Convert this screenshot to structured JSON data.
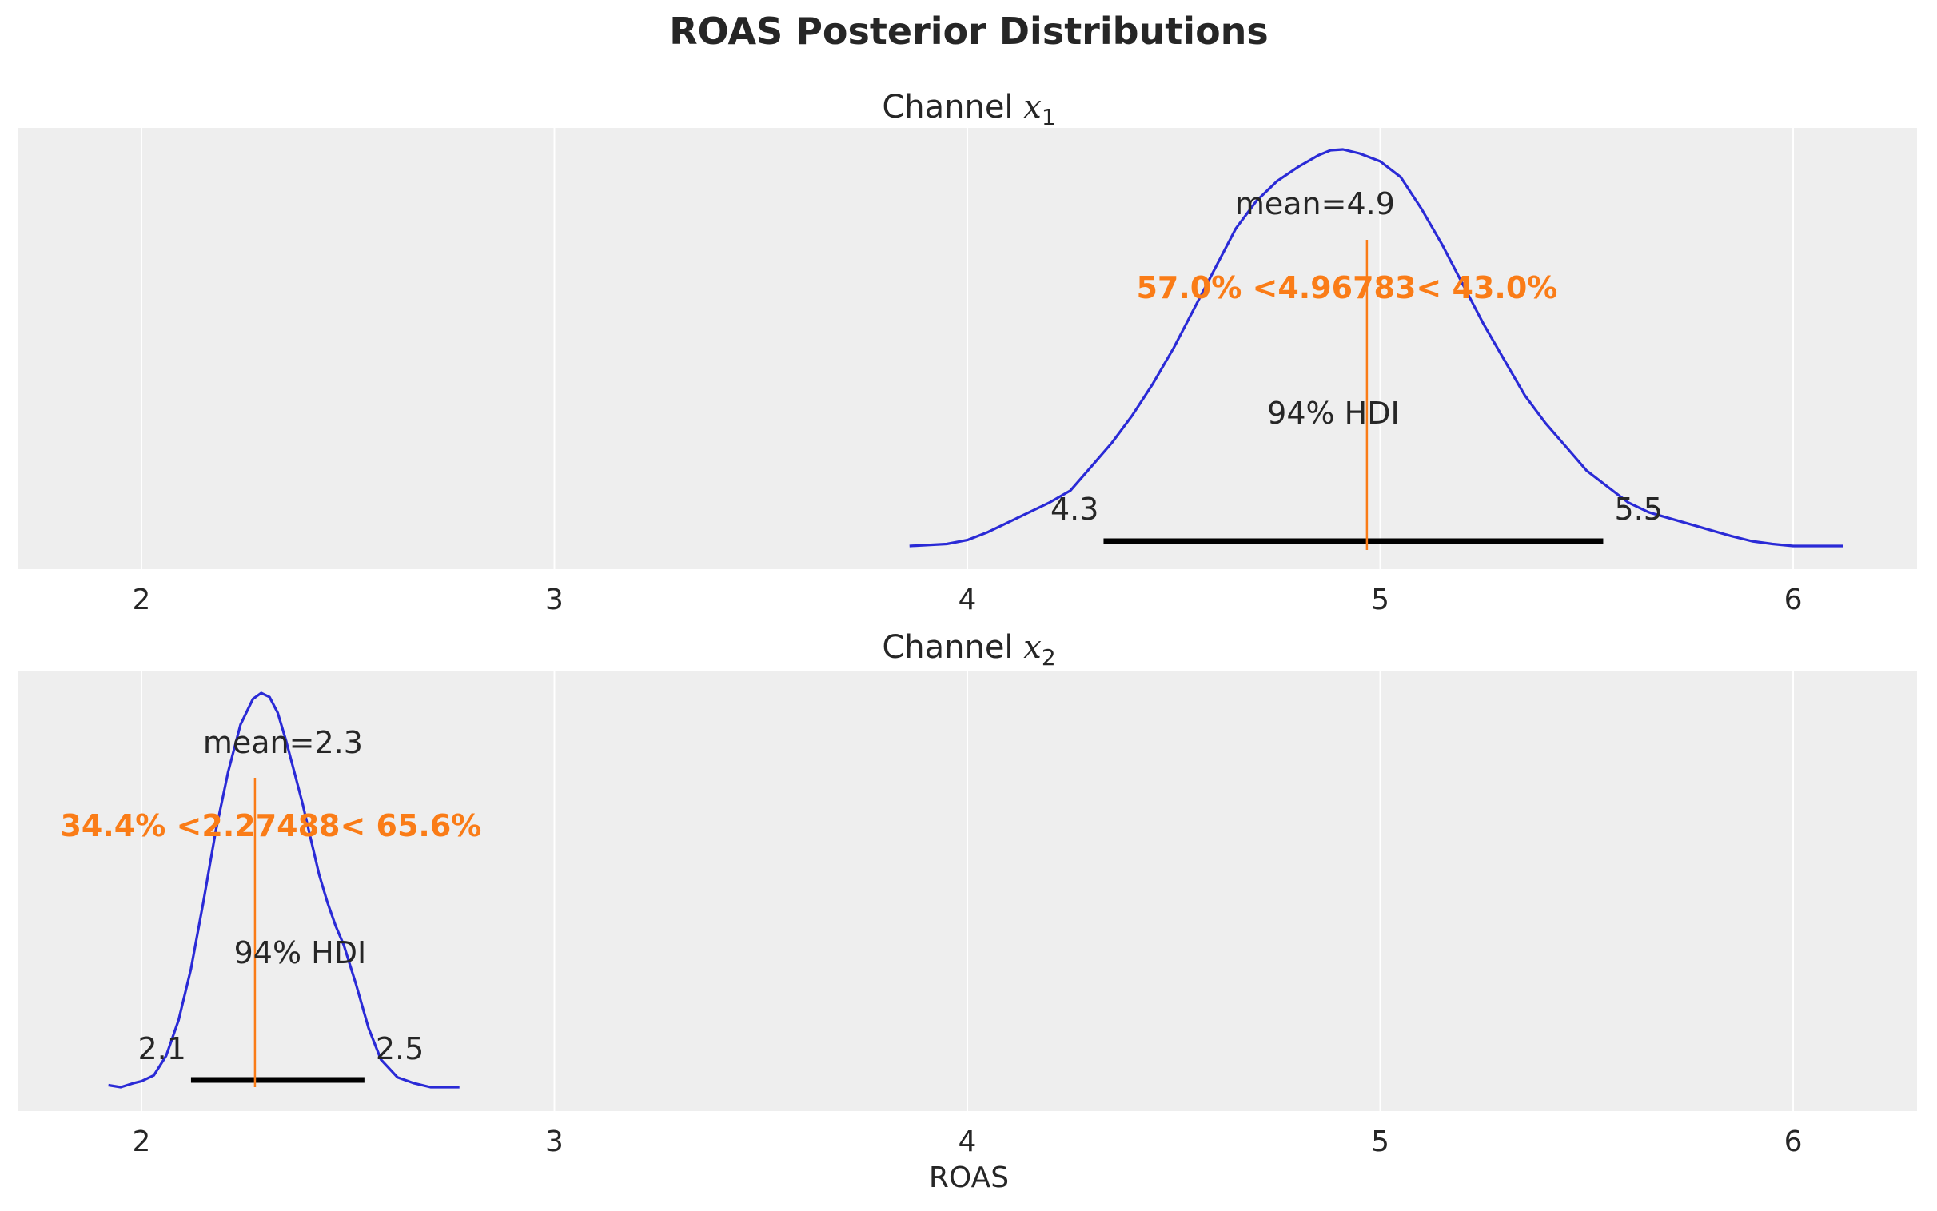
{
  "chart_data": {
    "type": "kde",
    "title": "ROAS Posterior Distributions",
    "xlabel": "ROAS",
    "xlim": [
      1.7,
      6.3
    ],
    "xticks": [
      2,
      3,
      4,
      5,
      6
    ],
    "grid": true,
    "colors": {
      "density": "#2a2ad6",
      "reference": "#fa7c17",
      "hdi": "#000000",
      "panel_bg": "#eeeeee",
      "text": "#262626"
    },
    "panels": [
      {
        "title_prefix": "Channel ",
        "title_var": "x",
        "title_sub": "1",
        "x_range": [
          3.86,
          6.12
        ],
        "density": {
          "x": [
            3.86,
            3.95,
            4.0,
            4.05,
            4.1,
            4.15,
            4.2,
            4.25,
            4.3,
            4.35,
            4.4,
            4.45,
            4.5,
            4.55,
            4.6,
            4.65,
            4.7,
            4.75,
            4.8,
            4.85,
            4.88,
            4.91,
            4.95,
            5.0,
            5.05,
            5.1,
            5.15,
            5.2,
            5.25,
            5.3,
            5.35,
            5.4,
            5.45,
            5.5,
            5.55,
            5.6,
            5.65,
            5.7,
            5.75,
            5.8,
            5.85,
            5.9,
            5.95,
            6.0,
            6.12
          ],
          "y": [
            0.0,
            0.005,
            0.015,
            0.035,
            0.06,
            0.085,
            0.11,
            0.14,
            0.2,
            0.26,
            0.33,
            0.41,
            0.5,
            0.6,
            0.7,
            0.8,
            0.87,
            0.92,
            0.955,
            0.985,
            0.998,
            1.0,
            0.99,
            0.97,
            0.93,
            0.85,
            0.76,
            0.66,
            0.56,
            0.47,
            0.38,
            0.31,
            0.25,
            0.19,
            0.15,
            0.11,
            0.085,
            0.07,
            0.055,
            0.04,
            0.025,
            0.012,
            0.005,
            0.0,
            0.0
          ]
        },
        "mean_label": "mean=4.9",
        "mean_value": 4.9,
        "reference_value": 4.96783,
        "reference_label": "57.0% <4.96783< 43.0%",
        "hdi_label": "94% HDI",
        "hdi": [
          4.33,
          5.54
        ],
        "hdi_low_label": "4.3",
        "hdi_high_label": "5.5"
      },
      {
        "title_prefix": "Channel ",
        "title_var": "x",
        "title_sub": "2",
        "x_range": [
          1.92,
          2.77
        ],
        "density": {
          "x": [
            1.92,
            1.95,
            1.98,
            2.0,
            2.03,
            2.06,
            2.09,
            2.12,
            2.15,
            2.18,
            2.21,
            2.24,
            2.27,
            2.29,
            2.31,
            2.33,
            2.35,
            2.37,
            2.39,
            2.41,
            2.43,
            2.45,
            2.47,
            2.49,
            2.52,
            2.55,
            2.58,
            2.62,
            2.66,
            2.7,
            2.77
          ],
          "y": [
            0.005,
            0.0,
            0.01,
            0.015,
            0.03,
            0.08,
            0.17,
            0.3,
            0.47,
            0.65,
            0.8,
            0.92,
            0.985,
            1.0,
            0.99,
            0.95,
            0.88,
            0.8,
            0.72,
            0.63,
            0.54,
            0.47,
            0.41,
            0.36,
            0.26,
            0.15,
            0.07,
            0.025,
            0.01,
            0.0,
            0.0
          ]
        },
        "mean_label": "mean=2.3",
        "mean_value": 2.3,
        "reference_value": 2.27488,
        "reference_label": "34.4% <2.27488< 65.6%",
        "hdi_label": "94% HDI",
        "hdi": [
          2.12,
          2.54
        ],
        "hdi_low_label": "2.1",
        "hdi_high_label": "2.5"
      }
    ]
  }
}
